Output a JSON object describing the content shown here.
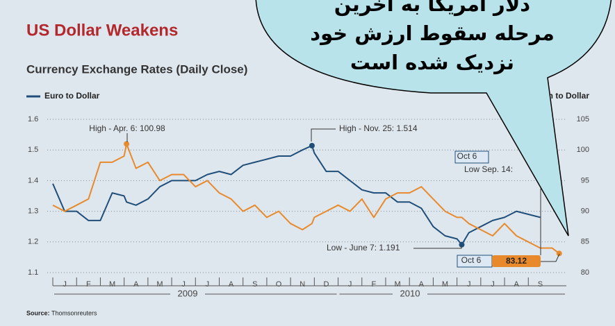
{
  "chart_data": {
    "type": "line",
    "title": "US Dollar Weakens",
    "subtitle": "Currency Exchange Rates (Daily Close)",
    "source_label": "Source:",
    "source": "Thomsonreuters",
    "x": [
      0,
      0.5,
      1,
      1.5,
      2,
      2.5,
      3,
      3.1,
      3.5,
      4,
      4.5,
      5,
      5.5,
      6,
      6.5,
      7,
      7.5,
      8,
      8.5,
      9,
      9.5,
      10,
      10.5,
      10.9,
      11,
      11.5,
      12,
      12.5,
      13,
      13.5,
      14,
      14.5,
      15,
      15.5,
      16,
      16.5,
      17,
      17.2,
      17.5,
      18,
      18.5,
      19,
      19.5,
      20,
      20.5,
      21,
      21.3
    ],
    "xlim": [
      0,
      21.6
    ],
    "xticks": [
      {
        "value": 0.5,
        "label": "J"
      },
      {
        "value": 1.5,
        "label": "F"
      },
      {
        "value": 2.5,
        "label": "M"
      },
      {
        "value": 3.5,
        "label": "A"
      },
      {
        "value": 4.5,
        "label": "M"
      },
      {
        "value": 5.5,
        "label": "J"
      },
      {
        "value": 6.5,
        "label": "J"
      },
      {
        "value": 7.5,
        "label": "A"
      },
      {
        "value": 8.5,
        "label": "S"
      },
      {
        "value": 9.5,
        "label": "O"
      },
      {
        "value": 10.5,
        "label": "N"
      },
      {
        "value": 11.5,
        "label": "D"
      },
      {
        "value": 12.5,
        "label": "J"
      },
      {
        "value": 13.5,
        "label": "F"
      },
      {
        "value": 14.5,
        "label": "M"
      },
      {
        "value": 15.5,
        "label": "A"
      },
      {
        "value": 16.5,
        "label": "M"
      },
      {
        "value": 17.5,
        "label": "J"
      },
      {
        "value": 18.5,
        "label": "J"
      },
      {
        "value": 19.5,
        "label": "A"
      },
      {
        "value": 20.5,
        "label": "S"
      }
    ],
    "year_labels": [
      "2009",
      "2010"
    ],
    "ylim": [
      1.1,
      1.6
    ],
    "yticks": [
      1.1,
      1.2,
      1.3,
      1.4,
      1.5,
      1.6
    ],
    "y2lim": [
      80,
      105
    ],
    "y2ticks": [
      80,
      85,
      90,
      95,
      100,
      105
    ],
    "grid": true,
    "series": [
      {
        "name": "Euro to Dollar",
        "color": "#1f4e79",
        "values": [
          1.39,
          1.3,
          1.3,
          1.27,
          1.27,
          1.36,
          1.35,
          1.33,
          1.32,
          1.34,
          1.38,
          1.4,
          1.4,
          1.4,
          1.42,
          1.43,
          1.42,
          1.45,
          1.46,
          1.47,
          1.48,
          1.48,
          1.5,
          1.514,
          1.49,
          1.43,
          1.43,
          1.4,
          1.37,
          1.36,
          1.36,
          1.33,
          1.33,
          1.31,
          1.25,
          1.22,
          1.21,
          1.191,
          1.23,
          1.25,
          1.27,
          1.28,
          1.3,
          1.29,
          1.28,
          null,
          1.38
        ]
      },
      {
        "name": "Yen to Dollar",
        "color": "#e8892b",
        "axis": "y2",
        "values": [
          91,
          90,
          91,
          92,
          98,
          98,
          99,
          100.98,
          97,
          98,
          95,
          96,
          96,
          94,
          95,
          93,
          92,
          90,
          91,
          89,
          90,
          88,
          87,
          88,
          89,
          90,
          91,
          90,
          92,
          89,
          92,
          93,
          93,
          94,
          92,
          90,
          89,
          89,
          88,
          87,
          86,
          88,
          86,
          85,
          84,
          84,
          83.12
        ]
      }
    ],
    "annotations": [
      "High - Apr. 6: 100.98",
      "High - Nov. 25: 1.514",
      "Low - June 7: 1.191",
      "Low  Sep. 14:",
      "Oct 6",
      "Oct 6"
    ]
  },
  "callout": {
    "lines": [
      "دلار آمریکا به آخرین",
      "مرحله سقوط ارزش خود",
      "نزدیک شده است"
    ]
  }
}
